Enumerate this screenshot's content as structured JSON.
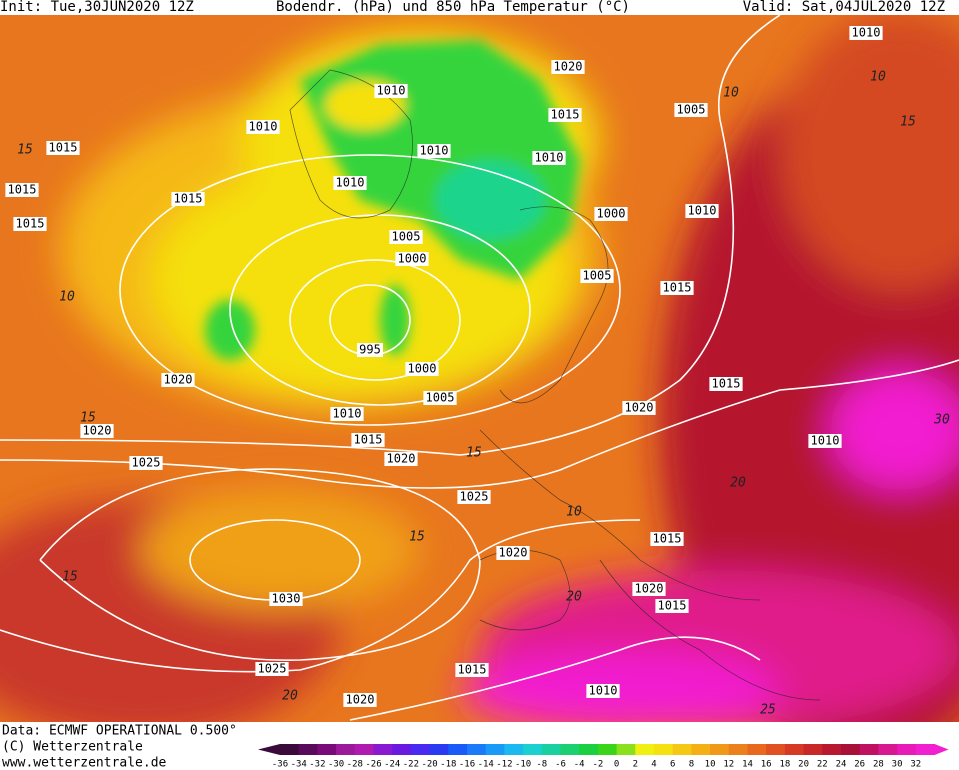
{
  "header": {
    "init": "Init: Tue,30JUN2020 12Z",
    "title": "Bodendr. (hPa) und 850 hPa Temperatur (°C)",
    "valid": "Valid: Sat,04JUL2020 12Z"
  },
  "isobar_labels": [
    "1010",
    "1020",
    "1010",
    "1015",
    "1005",
    "1010",
    "1015",
    "1010",
    "1010",
    "1010",
    "1015",
    "1015",
    "1000",
    "1010",
    "1015",
    "1005",
    "1000",
    "1005",
    "1015",
    "995",
    "1000",
    "1020",
    "1015",
    "1005",
    "1020",
    "1010",
    "1020",
    "1015",
    "1010",
    "1020",
    "1025",
    "1025",
    "1015",
    "1020",
    "1030",
    "1020",
    "1015",
    "1025",
    "1015",
    "1010",
    "1020"
  ],
  "temperature_labels": [
    "10",
    "10",
    "15",
    "15",
    "10",
    "15",
    "15",
    "15",
    "10",
    "15",
    "20",
    "20",
    "20",
    "25",
    "30"
  ],
  "footer": {
    "data": "Data: ECMWF OPERATIONAL 0.500°",
    "copyright": "(C) Wetterzentrale",
    "url": "www.wetterzentrale.de"
  },
  "color_scale": [
    -36,
    -34,
    -32,
    -30,
    -28,
    -26,
    -24,
    -22,
    -20,
    -18,
    -16,
    -14,
    -12,
    -10,
    -8,
    -6,
    -4,
    -2,
    0,
    2,
    4,
    6,
    8,
    10,
    12,
    14,
    16,
    18,
    20,
    22,
    24,
    26,
    28,
    30,
    32
  ]
}
